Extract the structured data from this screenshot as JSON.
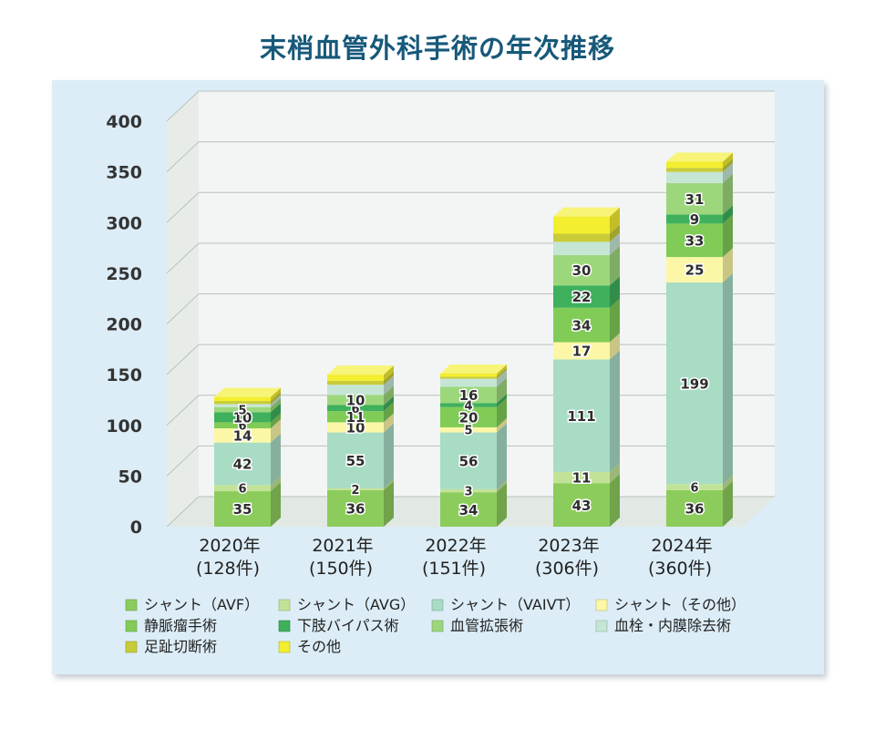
{
  "chart_data": {
    "type": "bar",
    "stacked": true,
    "title": "末梢血管外科手術の年次推移",
    "xlabel": "",
    "ylabel": "",
    "ylim": [
      0,
      400
    ],
    "yticks": [
      "0",
      "50",
      "100",
      "150",
      "200",
      "250",
      "300",
      "350",
      "400"
    ],
    "grid": true,
    "legend_position": "bottom",
    "categories": [
      "2020年",
      "2021年",
      "2022年",
      "2023年",
      "2024年"
    ],
    "category_totals": [
      "(128件)",
      "(150件)",
      "(151件)",
      "(306件)",
      "(360件)"
    ],
    "series": [
      {
        "name": "シャント（AVF）",
        "color": "#8ccc5c",
        "values": [
          35,
          36,
          34,
          43,
          36
        ]
      },
      {
        "name": "シャント（AVG）",
        "color": "#c2e397",
        "values": [
          6,
          2,
          3,
          11,
          6
        ]
      },
      {
        "name": "シャント（VAIVT）",
        "color": "#a8dcc4",
        "values": [
          42,
          55,
          56,
          111,
          199
        ]
      },
      {
        "name": "シャント（その他）",
        "color": "#fbf7a6",
        "values": [
          14,
          10,
          5,
          17,
          25
        ]
      },
      {
        "name": "静脈瘤手術",
        "color": "#80cc57",
        "values": [
          6,
          11,
          20,
          34,
          33
        ]
      },
      {
        "name": "下肢バイパス術",
        "color": "#3fb05c",
        "values": [
          10,
          6,
          4,
          22,
          9
        ]
      },
      {
        "name": "血管拡張術",
        "color": "#9dd77c",
        "values": [
          5,
          10,
          16,
          30,
          31
        ]
      },
      {
        "name": "血栓・内膜除去術",
        "color": "#c5e6d5",
        "values": [
          3,
          10,
          8,
          13,
          11
        ]
      },
      {
        "name": "足趾切断術",
        "color": "#c8cc38",
        "values": [
          3,
          4,
          2,
          8,
          4
        ]
      },
      {
        "name": "その他",
        "color": "#f3ee2e",
        "values": [
          4,
          6,
          3,
          17,
          6
        ]
      }
    ],
    "data_labels": [
      [
        "35",
        "6",
        "42",
        "14",
        "6",
        "10",
        "5",
        "",
        "",
        ""
      ],
      [
        "36",
        "2",
        "55",
        "10",
        "11",
        "6",
        "10",
        "",
        "",
        ""
      ],
      [
        "34",
        "3",
        "56",
        "5",
        "20",
        "4",
        "16",
        "",
        "",
        ""
      ],
      [
        "43",
        "11",
        "111",
        "17",
        "34",
        "22",
        "30",
        "",
        "",
        ""
      ],
      [
        "36",
        "6",
        "199",
        "25",
        "33",
        "9",
        "31",
        "",
        "",
        ""
      ]
    ]
  }
}
